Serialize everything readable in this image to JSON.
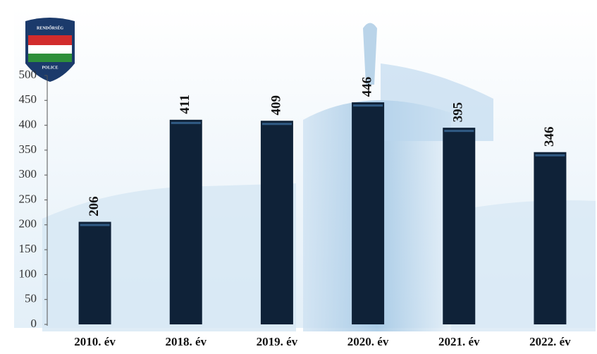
{
  "chart_data": {
    "type": "bar",
    "logo_texts": [
      "RENDŐRSÉG",
      "POLICE"
    ],
    "categories": [
      "2010. év",
      "2018. év",
      "2019. év",
      "2020. év",
      "2021. év",
      "2022. év"
    ],
    "values": [
      206,
      411,
      409,
      446,
      395,
      346
    ],
    "color": "#0f2238",
    "ylim": [
      0,
      500
    ],
    "yticks": [
      0,
      50,
      100,
      150,
      200,
      250,
      300,
      350,
      400,
      450,
      500
    ]
  }
}
